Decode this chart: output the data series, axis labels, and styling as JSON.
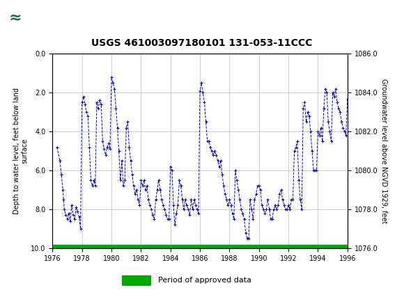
{
  "title": "USGS 461003097180101 131-053-11CCC",
  "ylabel_left": "Depth to water level, feet below land\nsurface",
  "ylabel_right": "Groundwater level above NGVD 1929, feet",
  "ylim_left": [
    10.0,
    0.0
  ],
  "ylim_right": [
    1076.0,
    1086.0
  ],
  "xlim": [
    1976,
    1996
  ],
  "yticks_left": [
    0.0,
    2.0,
    4.0,
    6.0,
    8.0,
    10.0
  ],
  "yticks_right": [
    1076.0,
    1078.0,
    1080.0,
    1082.0,
    1084.0,
    1086.0
  ],
  "xticks": [
    1976,
    1978,
    1980,
    1982,
    1984,
    1986,
    1988,
    1990,
    1992,
    1994,
    1996
  ],
  "header_color": "#1a6b3c",
  "line_color": "#0000cc",
  "approved_bar_color": "#00aa00",
  "background_color": "#ffffff",
  "plot_bg_color": "#ffffff",
  "grid_color": "#bbbbbb",
  "data_x": [
    1976.3,
    1976.5,
    1976.6,
    1976.7,
    1976.75,
    1976.8,
    1976.9,
    1977.0,
    1977.1,
    1977.2,
    1977.3,
    1977.4,
    1977.5,
    1977.6,
    1977.7,
    1977.8,
    1977.9,
    1978.0,
    1978.1,
    1978.2,
    1978.3,
    1978.4,
    1978.5,
    1978.6,
    1978.7,
    1978.8,
    1978.9,
    1979.0,
    1979.1,
    1979.2,
    1979.3,
    1979.4,
    1979.5,
    1979.6,
    1979.7,
    1979.8,
    1979.9,
    1980.0,
    1980.1,
    1980.2,
    1980.3,
    1980.4,
    1980.5,
    1980.6,
    1980.7,
    1980.8,
    1980.9,
    1981.0,
    1981.1,
    1981.2,
    1981.3,
    1981.4,
    1981.5,
    1981.6,
    1981.7,
    1981.8,
    1981.9,
    1982.0,
    1982.1,
    1982.2,
    1982.3,
    1982.4,
    1982.5,
    1982.6,
    1982.7,
    1982.8,
    1982.9,
    1983.0,
    1983.1,
    1983.2,
    1983.3,
    1983.4,
    1983.5,
    1983.6,
    1983.7,
    1983.8,
    1983.9,
    1984.0,
    1984.1,
    1984.2,
    1984.3,
    1984.4,
    1984.5,
    1984.6,
    1984.7,
    1984.8,
    1984.9,
    1985.0,
    1985.1,
    1985.2,
    1985.3,
    1985.4,
    1985.5,
    1985.6,
    1985.7,
    1985.8,
    1985.9,
    1986.0,
    1986.1,
    1986.2,
    1986.3,
    1986.4,
    1986.5,
    1986.6,
    1986.7,
    1986.8,
    1986.9,
    1987.0,
    1987.1,
    1987.2,
    1987.3,
    1987.4,
    1987.5,
    1987.6,
    1987.7,
    1987.8,
    1987.9,
    1988.0,
    1988.1,
    1988.2,
    1988.3,
    1988.4,
    1988.5,
    1988.6,
    1988.7,
    1988.8,
    1988.9,
    1989.0,
    1989.1,
    1989.2,
    1989.3,
    1989.4,
    1989.5,
    1989.6,
    1989.7,
    1989.8,
    1989.9,
    1990.0,
    1990.1,
    1990.2,
    1990.3,
    1990.4,
    1990.5,
    1990.6,
    1990.7,
    1990.8,
    1990.9,
    1991.0,
    1991.1,
    1991.2,
    1991.3,
    1991.4,
    1991.5,
    1991.6,
    1991.7,
    1991.8,
    1991.9,
    1992.0,
    1992.1,
    1992.2,
    1992.3,
    1992.4,
    1992.5,
    1992.6,
    1992.7,
    1992.8,
    1992.9,
    1993.0,
    1993.1,
    1993.2,
    1993.3,
    1993.4,
    1993.5,
    1993.6,
    1993.7,
    1993.8,
    1993.9,
    1994.0,
    1994.1,
    1994.2,
    1994.3,
    1994.4,
    1994.5,
    1994.6,
    1994.7,
    1994.8,
    1994.9,
    1995.0,
    1995.1,
    1995.2,
    1995.3,
    1995.4,
    1995.5,
    1995.6,
    1995.7,
    1995.8,
    1995.9,
    1996.0
  ],
  "data_y": [
    4.8,
    5.5,
    6.2,
    7.0,
    7.5,
    8.0,
    8.3,
    8.5,
    8.2,
    8.6,
    7.8,
    8.3,
    8.5,
    7.9,
    8.1,
    8.4,
    9.0,
    2.5,
    2.2,
    2.6,
    3.0,
    3.2,
    4.8,
    6.5,
    6.8,
    6.5,
    6.8,
    2.5,
    2.8,
    2.4,
    2.6,
    4.5,
    4.9,
    5.2,
    4.8,
    4.6,
    4.9,
    1.2,
    1.5,
    1.8,
    2.8,
    3.8,
    5.0,
    6.5,
    5.5,
    6.8,
    6.5,
    3.8,
    3.5,
    4.8,
    5.5,
    6.2,
    6.8,
    7.2,
    7.0,
    7.5,
    7.8,
    6.5,
    6.8,
    6.5,
    7.0,
    6.8,
    7.5,
    7.8,
    8.0,
    8.3,
    8.5,
    7.5,
    7.0,
    6.5,
    7.0,
    7.5,
    7.8,
    8.0,
    8.3,
    8.5,
    8.5,
    5.8,
    6.0,
    7.8,
    8.8,
    8.2,
    7.8,
    6.5,
    6.8,
    7.5,
    8.0,
    7.5,
    7.8,
    8.0,
    8.3,
    7.5,
    8.0,
    7.5,
    7.8,
    8.0,
    8.2,
    1.9,
    1.5,
    2.0,
    2.5,
    3.5,
    4.5,
    4.5,
    4.8,
    5.0,
    5.2,
    5.0,
    5.2,
    5.5,
    5.8,
    5.5,
    6.2,
    6.8,
    7.2,
    7.5,
    7.8,
    7.5,
    7.8,
    8.2,
    8.5,
    6.0,
    6.5,
    7.0,
    7.5,
    8.0,
    8.2,
    8.5,
    9.2,
    9.5,
    9.5,
    7.5,
    8.0,
    8.5,
    7.5,
    7.2,
    6.8,
    6.8,
    7.0,
    7.8,
    8.0,
    8.2,
    8.0,
    7.5,
    8.0,
    8.5,
    8.5,
    8.0,
    7.8,
    8.0,
    7.8,
    7.2,
    7.0,
    7.5,
    7.8,
    8.0,
    8.0,
    7.8,
    8.0,
    7.5,
    7.5,
    5.0,
    4.8,
    4.5,
    6.5,
    7.5,
    8.0,
    2.8,
    2.5,
    3.5,
    3.0,
    3.2,
    4.0,
    5.0,
    6.0,
    6.0,
    6.0,
    4.0,
    4.2,
    3.8,
    4.5,
    2.8,
    1.8,
    2.0,
    3.5,
    4.0,
    4.5,
    2.0,
    2.2,
    1.8,
    2.5,
    2.8,
    3.0,
    3.5,
    3.8,
    4.0,
    4.2,
    2.3
  ]
}
